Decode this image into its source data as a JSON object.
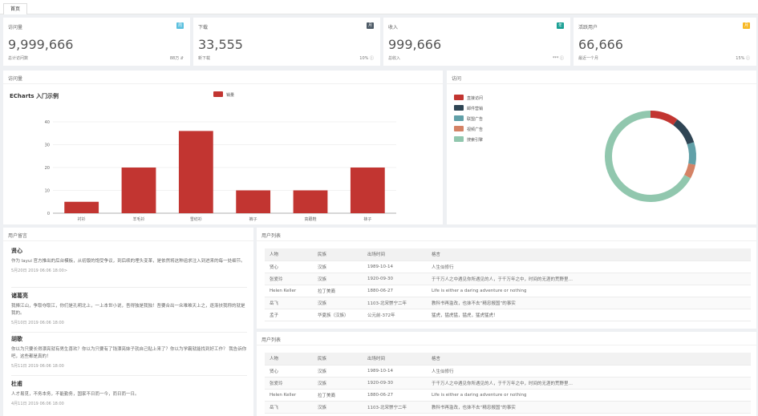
{
  "tabs": [
    {
      "label": "首页"
    }
  ],
  "stats": [
    {
      "title": "访问量",
      "badge": "周",
      "badge_color": "#5bc0de",
      "value": "9,999,666",
      "sub_label": "总计访问数",
      "sub_value": "88万 ⇵"
    },
    {
      "title": "下载",
      "badge": "月",
      "badge_color": "#4d5a66",
      "value": "33,555",
      "sub_label": "新下载",
      "sub_value": "10% ⓘ"
    },
    {
      "title": "收入",
      "badge": "年",
      "badge_color": "#1aa094",
      "value": "999,666",
      "sub_label": "总收入",
      "sub_value": "*** ⓘ"
    },
    {
      "title": "活跃用户",
      "badge": "月",
      "badge_color": "#f7b824",
      "value": "66,666",
      "sub_label": "最近一个月",
      "sub_value": "15% ⓘ"
    }
  ],
  "bar_panel": {
    "title": "访问量"
  },
  "pie_panel": {
    "title": "访问"
  },
  "comments_panel": {
    "title": "用户留言",
    "items": [
      {
        "name": "贤心",
        "text": "作为 layui 官方推出的后台模板，从初版的饱受争议，到后续的埋头变革，是依然将这种追求注入到进来的每一处细节。",
        "time": "5月20日 2019 06:06 18:00>"
      },
      {
        "name": "诸葛亮",
        "text": "我捧江山，争取夺取江，你们是孔明北上，一上本世小说，吾得独是我独！吾要合出一众难难天上之，逐渐扶我称的就是我的。",
        "time": "5月10日 2019 06:06 18:00"
      },
      {
        "name": "胡歌",
        "text": "你以为只要长得漂亮就有男生喜欢？你以为只要有了钱漂亮妹子就自己贴上来了？你以为学霸就能找到好工作？ 我告诉你吧，这些都是真的！",
        "time": "5月11日 2019 06:06 18:00"
      },
      {
        "name": "杜甫",
        "text": "人才易觅，不务本务，不能勤务，国家不日而一今，而日而一日。",
        "time": "4月11日 2019 06:06 18:00"
      }
    ]
  },
  "table1": {
    "title": "用户列表",
    "headers": [
      "人物",
      "民族",
      "出场时间",
      "格言"
    ],
    "rows": [
      [
        "贤心",
        "汉族",
        "1989-10-14",
        "人生似修行"
      ],
      [
        "张爱玲",
        "汉族",
        "1920-09-30",
        "于千万人之中遇见你所遇见的人，于千万年之中，时间的无涯的荒野里…"
      ],
      [
        "Helen Keller",
        "拉丁美裔",
        "1880-06-27",
        "Life is either a daring adventure or nothing"
      ],
      [
        "岳飞",
        "汉族",
        "1103-北宋崇宁二年",
        "教科书再滥改，也抹不去“精忠报国”的事实"
      ],
      [
        "孟子",
        "华夏族（汉族）",
        "公元前-372年",
        "猛虎，猛虎猛，猛虎，猛虎猛虎！"
      ]
    ]
  },
  "table2": {
    "title": "用户列表",
    "headers": [
      "人物",
      "民族",
      "出场时间",
      "格言"
    ],
    "rows": [
      [
        "贤心",
        "汉族",
        "1989-10-14",
        "人生似修行"
      ],
      [
        "张爱玲",
        "汉族",
        "1920-09-30",
        "于千万人之中遇见你所遇见的人，于千万年之中，时间的无涯的荒野里…"
      ],
      [
        "Helen Keller",
        "拉丁美裔",
        "1880-06-27",
        "Life is either a daring adventure or nothing"
      ],
      [
        "岳飞",
        "汉族",
        "1103-北宋崇宁二年",
        "教科书再滥改，也抹不去“精忠报国”的事实"
      ]
    ]
  },
  "chart_data": [
    {
      "type": "bar",
      "title": "ECharts 入门示例",
      "categories": [
        "衬衫",
        "羊毛衫",
        "雪纺衫",
        "裤子",
        "高跟鞋",
        "袜子"
      ],
      "series": [
        {
          "name": "销量",
          "values": [
            5,
            20,
            36,
            10,
            10,
            20
          ],
          "color": "#c23531"
        }
      ],
      "ylim": [
        0,
        40
      ],
      "yticks": [
        0,
        10,
        20,
        30,
        40
      ],
      "grid": true,
      "legend": "top-center"
    },
    {
      "type": "pie",
      "slices": [
        {
          "name": "直接访问",
          "value": 10,
          "color": "#c23531"
        },
        {
          "name": "邮件营销",
          "value": 10,
          "color": "#2f4554"
        },
        {
          "name": "联盟广告",
          "value": 8,
          "color": "#61a0a8"
        },
        {
          "name": "视频广告",
          "value": 5,
          "color": "#d48265"
        },
        {
          "name": "搜索引擎",
          "value": 67,
          "color": "#91c7ae"
        }
      ],
      "legend": "top-left"
    }
  ]
}
